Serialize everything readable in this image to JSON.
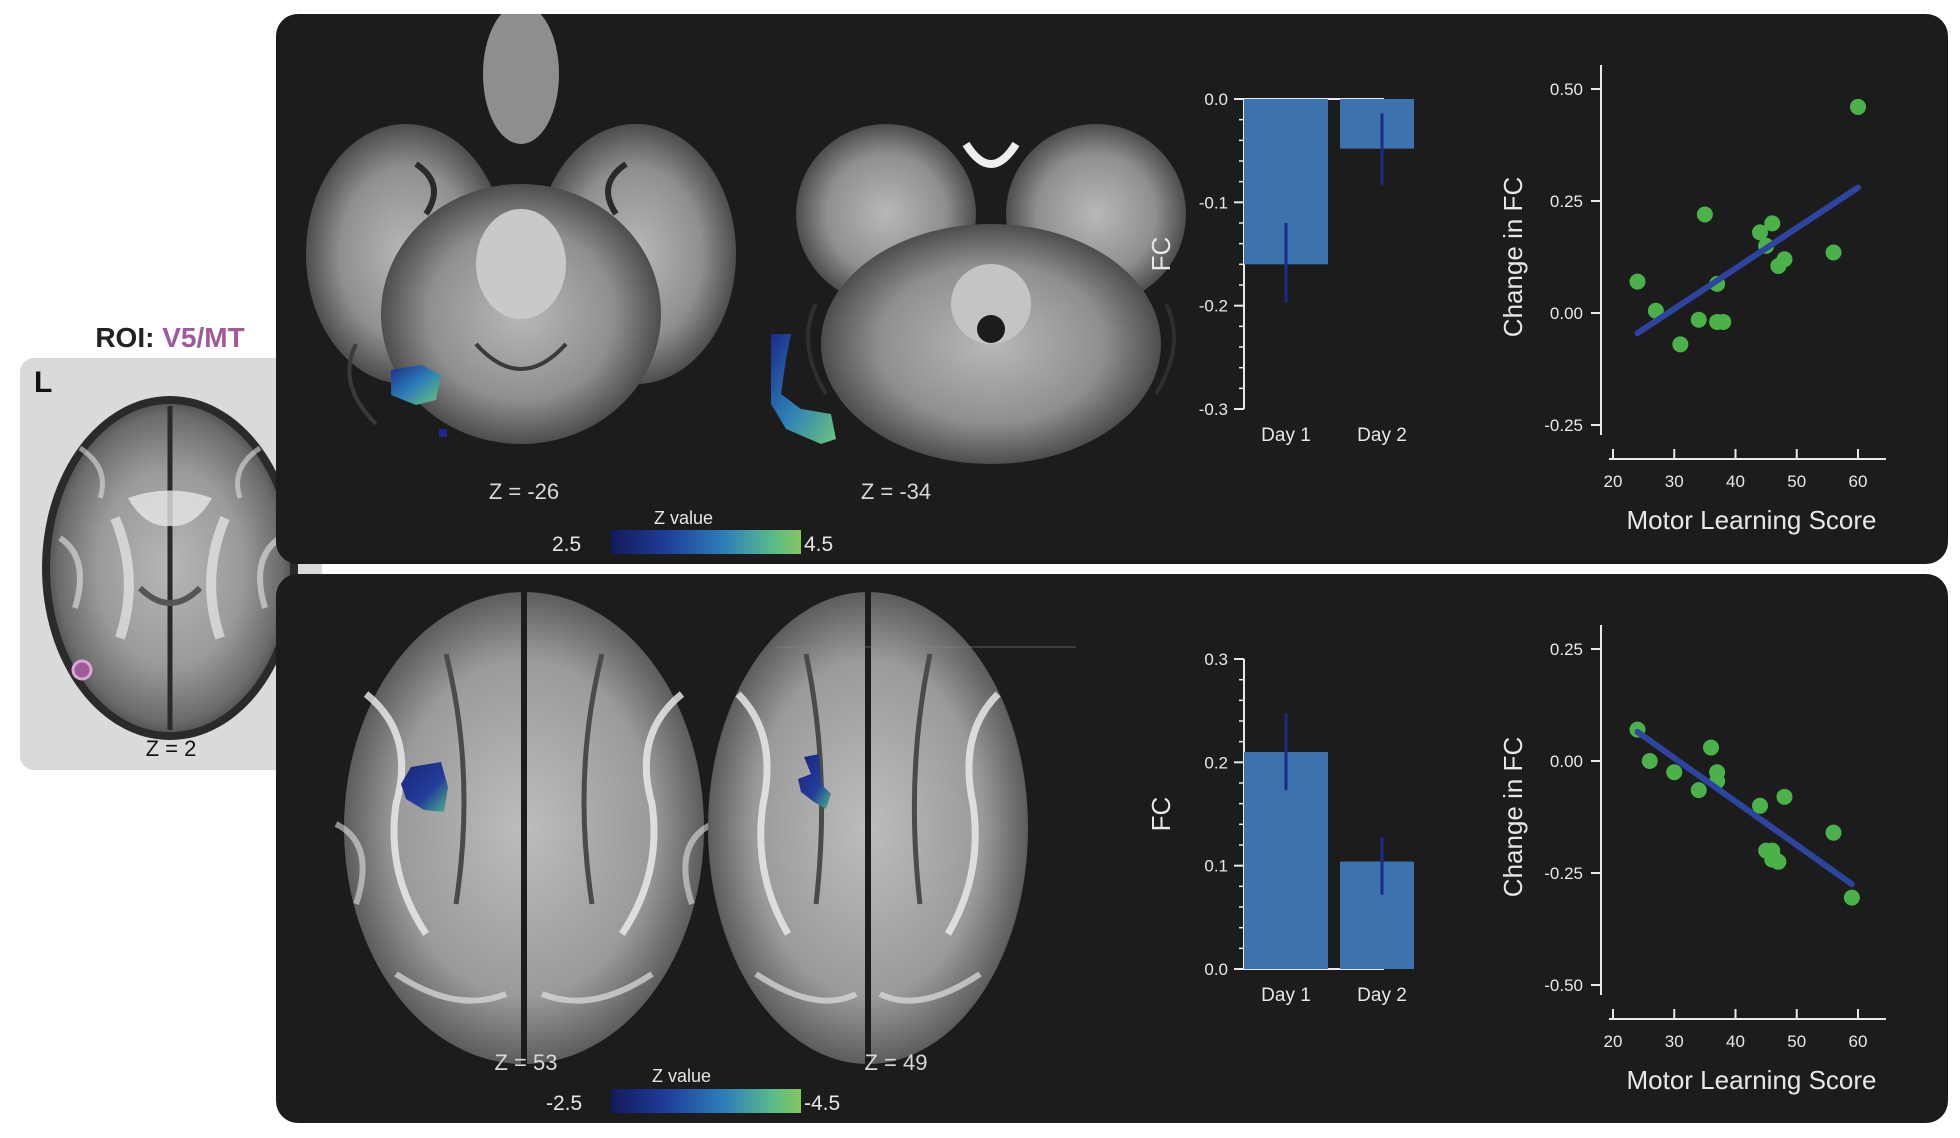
{
  "roi": {
    "title_prefix": "ROI:",
    "title_name": "V5/MT",
    "hemisphere_label": "L",
    "z_label": "Z = 2"
  },
  "colors": {
    "panel_bg": "#1c1c1c",
    "bar_fill": "#3c72ad",
    "error_bar": "#1e2a8a",
    "point_fill": "#4bb24a",
    "fit_line": "#2e45a0",
    "roi_marker": "#a05a9c"
  },
  "top": {
    "slices": [
      {
        "label": "Z = -26"
      },
      {
        "label": "Z = -34"
      }
    ],
    "colorbar": {
      "title": "Z  value",
      "min": "2.5",
      "max": "4.5"
    }
  },
  "bottom": {
    "slices": [
      {
        "label": "Z = 53"
      },
      {
        "label": "Z = 49"
      }
    ],
    "colorbar": {
      "title": "Z  value",
      "min": "-2.5",
      "max": "-4.5"
    }
  },
  "chart_data": [
    {
      "type": "bar",
      "categories": [
        "Day 1",
        "Day 2"
      ],
      "values": [
        -0.16,
        -0.048
      ],
      "errors": [
        [
          -0.197,
          -0.12
        ],
        [
          -0.083,
          -0.014
        ]
      ],
      "xlabel": "",
      "ylabel": "FC",
      "ylim": [
        -0.3,
        0.0
      ],
      "yticks": [
        "0.0",
        "-0.1",
        "-0.2",
        "-0.3"
      ]
    },
    {
      "type": "scatter",
      "x": [
        24,
        27,
        31,
        34,
        35,
        37,
        37,
        38,
        44,
        45,
        46,
        47,
        48,
        56,
        60
      ],
      "y": [
        0.07,
        0.005,
        -0.07,
        -0.015,
        0.22,
        0.065,
        -0.02,
        -0.02,
        0.18,
        0.15,
        0.2,
        0.105,
        0.12,
        0.135,
        0.46
      ],
      "fit": [
        [
          24,
          -0.045
        ],
        [
          60,
          0.28
        ]
      ],
      "xlabel": "Motor Learning Score",
      "ylabel": "Change in FC",
      "xlim": [
        20,
        60
      ],
      "ylim": [
        -0.25,
        0.5
      ],
      "xticks": [
        "20",
        "30",
        "40",
        "50",
        "60"
      ],
      "yticks": [
        "0.50",
        "0.25",
        "0.00",
        "-0.25"
      ]
    },
    {
      "type": "bar",
      "categories": [
        "Day 1",
        "Day 2"
      ],
      "values": [
        0.21,
        0.104
      ],
      "errors": [
        [
          0.173,
          0.247
        ],
        [
          0.072,
          0.128
        ]
      ],
      "xlabel": "",
      "ylabel": "FC",
      "ylim": [
        0.0,
        0.3
      ],
      "yticks": [
        "0.3",
        "0.2",
        "0.1",
        "0.0"
      ]
    },
    {
      "type": "scatter",
      "x": [
        24,
        26,
        30,
        34,
        36,
        37,
        37,
        44,
        45,
        46,
        46,
        46,
        47,
        48,
        56,
        59
      ],
      "y": [
        0.07,
        0.0,
        -0.025,
        -0.065,
        0.03,
        -0.025,
        -0.045,
        -0.1,
        -0.2,
        -0.205,
        -0.2,
        -0.22,
        -0.225,
        -0.08,
        -0.16,
        -0.305
      ],
      "fit": [
        [
          24,
          0.065
        ],
        [
          59,
          -0.275
        ]
      ],
      "xlabel": "Motor Learning Score",
      "ylabel": "Change in FC",
      "xlim": [
        20,
        60
      ],
      "ylim": [
        -0.5,
        0.25
      ],
      "xticks": [
        "20",
        "30",
        "40",
        "50",
        "60"
      ],
      "yticks": [
        "0.25",
        "0.00",
        "-0.25",
        "-0.50"
      ]
    }
  ]
}
